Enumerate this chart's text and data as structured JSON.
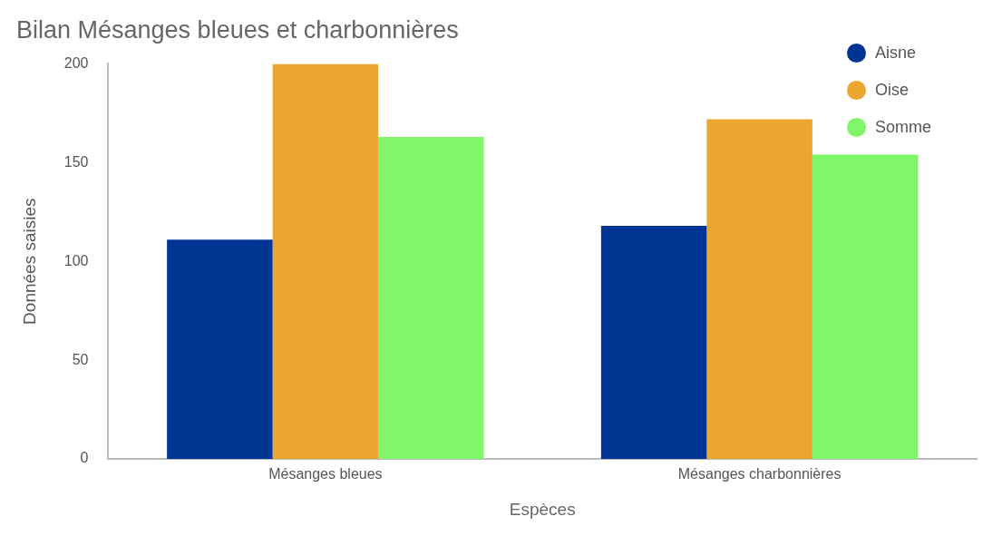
{
  "chart_data": {
    "type": "bar",
    "title": "Bilan Mésanges bleues et charbonnières",
    "xlabel": "Espèces",
    "ylabel": "Données saisies",
    "categories": [
      "Mésanges bleues",
      "Mésanges charbonnières"
    ],
    "series": [
      {
        "name": "Aisne",
        "color": "#003594",
        "values": [
          111,
          118
        ]
      },
      {
        "name": "Oise",
        "color": "#eaa62e",
        "values": [
          200,
          172
        ]
      },
      {
        "name": "Somme",
        "color": "#80f56a",
        "values": [
          163,
          154
        ]
      }
    ],
    "ylim": [
      0,
      200
    ],
    "yticks": [
      0,
      50,
      100,
      150,
      200
    ],
    "grid": false,
    "legend": "top right"
  }
}
